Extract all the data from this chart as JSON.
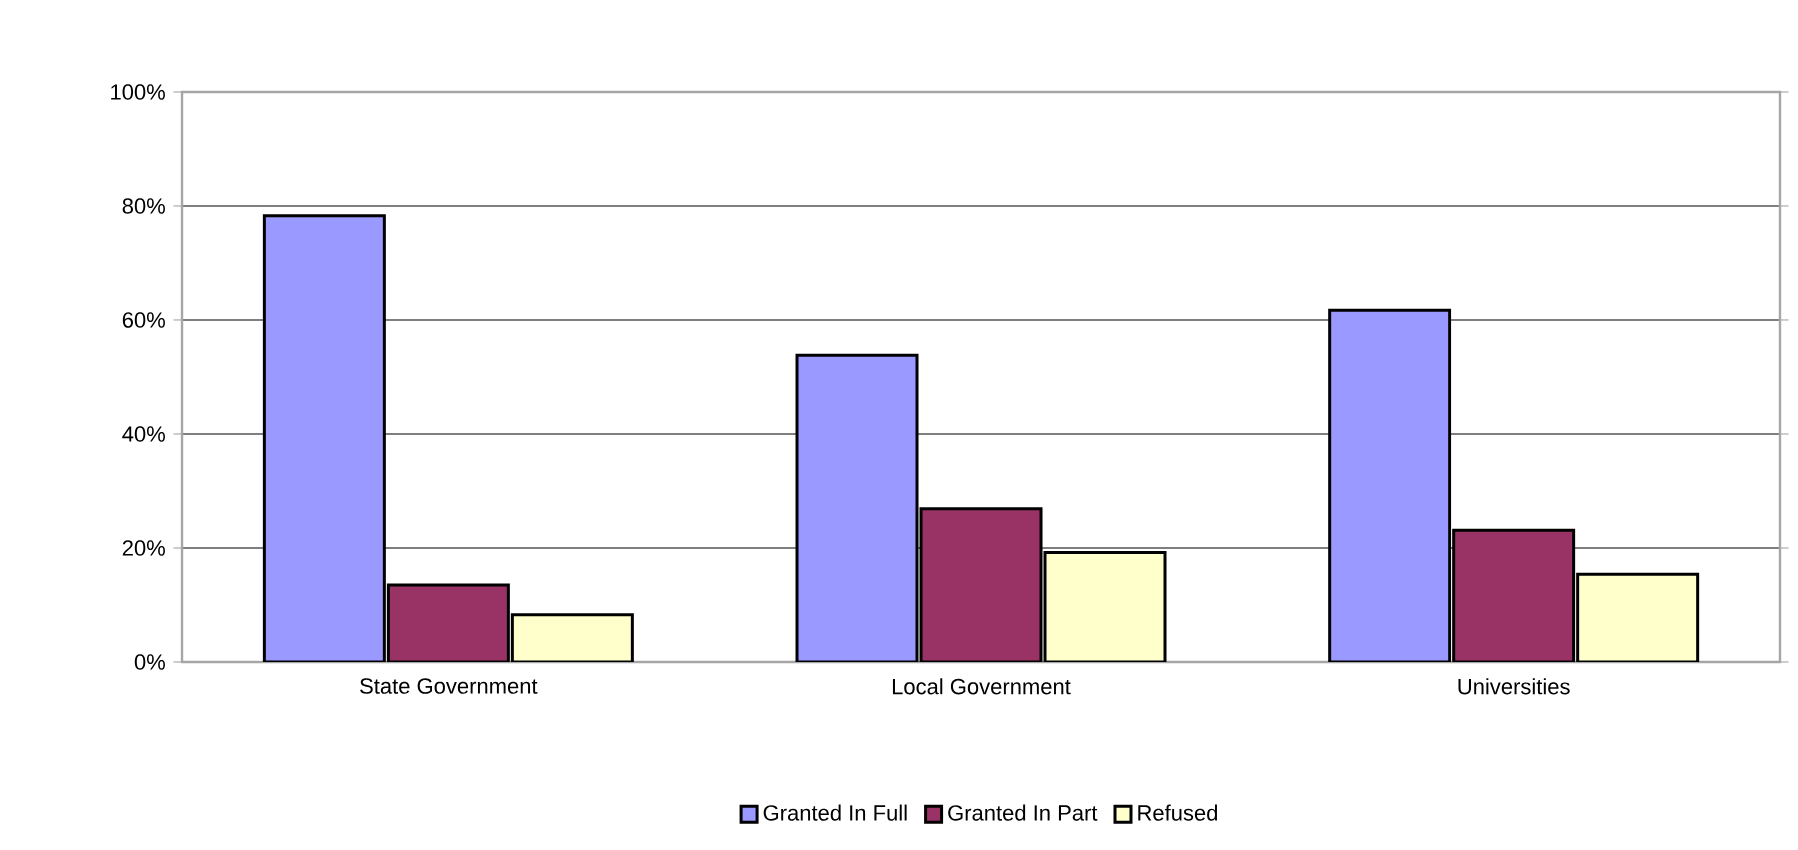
{
  "chart_data": {
    "type": "bar",
    "categories": [
      "State Government",
      "Local Government",
      "Universities"
    ],
    "series": [
      {
        "name": "Granted In Full",
        "color": "#9999ff",
        "values": [
          78.3,
          53.8,
          61.7
        ]
      },
      {
        "name": "Granted In Part",
        "color": "#993366",
        "values": [
          13.5,
          26.9,
          23.1
        ]
      },
      {
        "name": "Refused",
        "color": "#ffffcc",
        "values": [
          8.3,
          19.2,
          15.4
        ]
      }
    ],
    "ylim": [
      0,
      100
    ],
    "yticks": [
      {
        "value": 0,
        "label": "0%"
      },
      {
        "value": 20,
        "label": "20%"
      },
      {
        "value": 40,
        "label": "40%"
      },
      {
        "value": 60,
        "label": "60%"
      },
      {
        "value": 80,
        "label": "80%"
      },
      {
        "value": 100,
        "label": "100%"
      }
    ],
    "grid": "y",
    "legend": "bottom"
  }
}
